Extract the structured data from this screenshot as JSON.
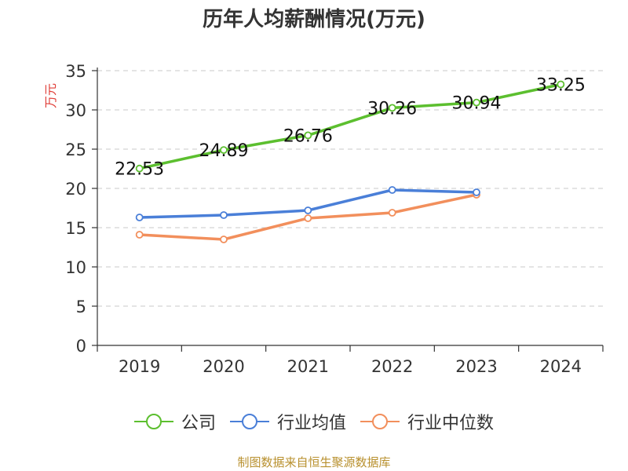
{
  "chart_data": {
    "type": "line",
    "title": "历年人均薪酬情况(万元)",
    "ylabel": "万元",
    "xlabel": "",
    "categories": [
      "2019",
      "2020",
      "2021",
      "2022",
      "2023",
      "2024"
    ],
    "ylim": [
      0,
      35
    ],
    "yticks": [
      "0",
      "5",
      "10",
      "15",
      "20",
      "25",
      "30",
      "35"
    ],
    "grid": true,
    "legend_position": "bottom",
    "series": [
      {
        "name": "公司",
        "color": "#5cbf2f",
        "values": [
          22.53,
          24.89,
          26.76,
          30.26,
          30.94,
          33.25
        ],
        "labels": [
          "22.53",
          "24.89",
          "26.76",
          "30.26",
          "30.94",
          "33.25"
        ]
      },
      {
        "name": "行业均值",
        "color": "#4a7fd8",
        "values": [
          16.3,
          16.6,
          17.2,
          19.8,
          19.5,
          null
        ]
      },
      {
        "name": "行业中位数",
        "color": "#f28f5c",
        "values": [
          14.1,
          13.5,
          16.2,
          16.9,
          19.2,
          null
        ]
      }
    ]
  },
  "footer": "制图数据来自恒生聚源数据库"
}
